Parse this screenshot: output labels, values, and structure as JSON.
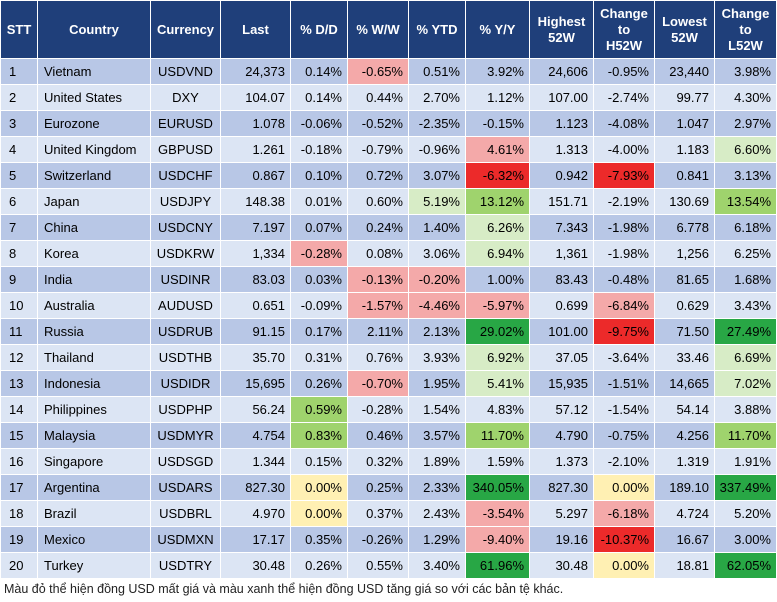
{
  "headers": [
    "STT",
    "Country",
    "Currency",
    "Last",
    "% D/D",
    "% W/W",
    "% YTD",
    "% Y/Y",
    "Highest 52W",
    "Change to H52W",
    "Lowest 52W",
    "Change to L52W"
  ],
  "header_lines": [
    [
      "STT"
    ],
    [
      "Country"
    ],
    [
      "Currency"
    ],
    [
      "Last"
    ],
    [
      "% D/D"
    ],
    [
      "% W/W"
    ],
    [
      "% YTD"
    ],
    [
      "% Y/Y"
    ],
    [
      "Highest",
      "52W"
    ],
    [
      "Change",
      "to",
      "H52W"
    ],
    [
      "Lowest",
      "52W"
    ],
    [
      "Change",
      "to",
      "L52W"
    ]
  ],
  "colors": {
    "header_bg": "#1f3f7a",
    "row_odd": "#b8c7e6",
    "row_even": "#dce5f4",
    "light_red": "#f4a9a9",
    "dark_red": "#ec2a2a",
    "light_green": "#d7ecc6",
    "green": "#9fd36d",
    "dark_green": "#28a745",
    "yellow": "#fff0b3"
  },
  "rows": [
    {
      "stt": "1",
      "country": "Vietnam",
      "currency": "USDVND",
      "last": "24,373",
      "dd": "0.14%",
      "ww": "-0.65%",
      "ytd": "0.51%",
      "yy": "3.92%",
      "h52": "24,606",
      "ch52": "-0.95%",
      "l52": "23,440",
      "cl52": "3.98%"
    },
    {
      "stt": "2",
      "country": "United States",
      "currency": "DXY",
      "last": "104.07",
      "dd": "0.14%",
      "ww": "0.44%",
      "ytd": "2.70%",
      "yy": "1.12%",
      "h52": "107.00",
      "ch52": "-2.74%",
      "l52": "99.77",
      "cl52": "4.30%"
    },
    {
      "stt": "3",
      "country": "Eurozone",
      "currency": "EURUSD",
      "last": "1.078",
      "dd": "-0.06%",
      "ww": "-0.52%",
      "ytd": "-2.35%",
      "yy": "-0.15%",
      "h52": "1.123",
      "ch52": "-4.08%",
      "l52": "1.047",
      "cl52": "2.97%"
    },
    {
      "stt": "4",
      "country": "United Kingdom",
      "currency": "GBPUSD",
      "last": "1.261",
      "dd": "-0.18%",
      "ww": "-0.79%",
      "ytd": "-0.96%",
      "yy": "4.61%",
      "h52": "1.313",
      "ch52": "-4.00%",
      "l52": "1.183",
      "cl52": "6.60%"
    },
    {
      "stt": "5",
      "country": "Switzerland",
      "currency": "USDCHF",
      "last": "0.867",
      "dd": "0.10%",
      "ww": "0.72%",
      "ytd": "3.07%",
      "yy": "-6.32%",
      "h52": "0.942",
      "ch52": "-7.93%",
      "l52": "0.841",
      "cl52": "3.13%"
    },
    {
      "stt": "6",
      "country": "Japan",
      "currency": "USDJPY",
      "last": "148.38",
      "dd": "0.01%",
      "ww": "0.60%",
      "ytd": "5.19%",
      "yy": "13.12%",
      "h52": "151.71",
      "ch52": "-2.19%",
      "l52": "130.69",
      "cl52": "13.54%"
    },
    {
      "stt": "7",
      "country": "China",
      "currency": "USDCNY",
      "last": "7.197",
      "dd": "0.07%",
      "ww": "0.24%",
      "ytd": "1.40%",
      "yy": "6.26%",
      "h52": "7.343",
      "ch52": "-1.98%",
      "l52": "6.778",
      "cl52": "6.18%"
    },
    {
      "stt": "8",
      "country": "Korea",
      "currency": "USDKRW",
      "last": "1,334",
      "dd": "-0.28%",
      "ww": "0.08%",
      "ytd": "3.06%",
      "yy": "6.94%",
      "h52": "1,361",
      "ch52": "-1.98%",
      "l52": "1,256",
      "cl52": "6.25%"
    },
    {
      "stt": "9",
      "country": "India",
      "currency": "USDINR",
      "last": "83.03",
      "dd": "0.03%",
      "ww": "-0.13%",
      "ytd": "-0.20%",
      "yy": "1.00%",
      "h52": "83.43",
      "ch52": "-0.48%",
      "l52": "81.65",
      "cl52": "1.68%"
    },
    {
      "stt": "10",
      "country": "Australia",
      "currency": "AUDUSD",
      "last": "0.651",
      "dd": "-0.09%",
      "ww": "-1.57%",
      "ytd": "-4.46%",
      "yy": "-5.97%",
      "h52": "0.699",
      "ch52": "-6.84%",
      "l52": "0.629",
      "cl52": "3.43%"
    },
    {
      "stt": "11",
      "country": "Russia",
      "currency": "USDRUB",
      "last": "91.15",
      "dd": "0.17%",
      "ww": "2.11%",
      "ytd": "2.13%",
      "yy": "29.02%",
      "h52": "101.00",
      "ch52": "-9.75%",
      "l52": "71.50",
      "cl52": "27.49%"
    },
    {
      "stt": "12",
      "country": "Thailand",
      "currency": "USDTHB",
      "last": "35.70",
      "dd": "0.31%",
      "ww": "0.76%",
      "ytd": "3.93%",
      "yy": "6.92%",
      "h52": "37.05",
      "ch52": "-3.64%",
      "l52": "33.46",
      "cl52": "6.69%"
    },
    {
      "stt": "13",
      "country": "Indonesia",
      "currency": "USDIDR",
      "last": "15,695",
      "dd": "0.26%",
      "ww": "-0.70%",
      "ytd": "1.95%",
      "yy": "5.41%",
      "h52": "15,935",
      "ch52": "-1.51%",
      "l52": "14,665",
      "cl52": "7.02%"
    },
    {
      "stt": "14",
      "country": "Philippines",
      "currency": "USDPHP",
      "last": "56.24",
      "dd": "0.59%",
      "ww": "-0.28%",
      "ytd": "1.54%",
      "yy": "4.83%",
      "h52": "57.12",
      "ch52": "-1.54%",
      "l52": "54.14",
      "cl52": "3.88%"
    },
    {
      "stt": "15",
      "country": "Malaysia",
      "currency": "USDMYR",
      "last": "4.754",
      "dd": "0.83%",
      "ww": "0.46%",
      "ytd": "3.57%",
      "yy": "11.70%",
      "h52": "4.790",
      "ch52": "-0.75%",
      "l52": "4.256",
      "cl52": "11.70%"
    },
    {
      "stt": "16",
      "country": "Singapore",
      "currency": "USDSGD",
      "last": "1.344",
      "dd": "0.15%",
      "ww": "0.32%",
      "ytd": "1.89%",
      "yy": "1.59%",
      "h52": "1.373",
      "ch52": "-2.10%",
      "l52": "1.319",
      "cl52": "1.91%"
    },
    {
      "stt": "17",
      "country": "Argentina",
      "currency": "USDARS",
      "last": "827.30",
      "dd": "0.00%",
      "ww": "0.25%",
      "ytd": "2.33%",
      "yy": "340.05%",
      "h52": "827.30",
      "ch52": "0.00%",
      "l52": "189.10",
      "cl52": "337.49%"
    },
    {
      "stt": "18",
      "country": "Brazil",
      "currency": "USDBRL",
      "last": "4.970",
      "dd": "0.00%",
      "ww": "0.37%",
      "ytd": "2.43%",
      "yy": "-3.54%",
      "h52": "5.297",
      "ch52": "-6.18%",
      "l52": "4.724",
      "cl52": "5.20%"
    },
    {
      "stt": "19",
      "country": "Mexico",
      "currency": "USDMXN",
      "last": "17.17",
      "dd": "0.35%",
      "ww": "-0.26%",
      "ytd": "1.29%",
      "yy": "-9.40%",
      "h52": "19.16",
      "ch52": "-10.37%",
      "l52": "16.67",
      "cl52": "3.00%"
    },
    {
      "stt": "20",
      "country": "Turkey",
      "currency": "USDTRY",
      "last": "30.48",
      "dd": "0.26%",
      "ww": "0.55%",
      "ytd": "3.40%",
      "yy": "61.96%",
      "h52": "30.48",
      "ch52": "0.00%",
      "l52": "18.81",
      "cl52": "62.05%"
    }
  ],
  "highlights": {
    "0": {
      "ww": "light_red"
    },
    "3": {
      "yy": "light_red",
      "cl52": "light_green"
    },
    "4": {
      "yy": "dark_red",
      "ch52": "dark_red"
    },
    "5": {
      "ytd": "light_green",
      "yy": "green",
      "cl52": "green"
    },
    "6": {
      "yy": "light_green"
    },
    "7": {
      "dd": "light_red",
      "yy": "light_green"
    },
    "8": {
      "ww": "light_red",
      "ytd": "light_red"
    },
    "9": {
      "ww": "light_red",
      "ytd": "light_red",
      "yy": "light_red",
      "ch52": "light_red"
    },
    "10": {
      "yy": "dark_green",
      "ch52": "dark_red",
      "cl52": "dark_green"
    },
    "11": {
      "yy": "light_green",
      "cl52": "light_green"
    },
    "12": {
      "ww": "light_red",
      "yy": "light_green",
      "cl52": "light_green"
    },
    "13": {
      "dd": "green"
    },
    "14": {
      "dd": "green",
      "yy": "green",
      "cl52": "green"
    },
    "16": {
      "dd": "yellow",
      "yy": "dark_green",
      "ch52": "yellow",
      "cl52": "dark_green"
    },
    "17": {
      "dd": "yellow",
      "yy": "light_red",
      "ch52": "light_red"
    },
    "18": {
      "yy": "light_red",
      "ch52": "dark_red"
    },
    "19": {
      "yy": "dark_green",
      "ch52": "yellow",
      "cl52": "dark_green"
    }
  },
  "footnote": "Màu đỏ thể hiện đồng USD mất giá và màu xanh thể hiện đồng USD tăng giá so với các bản tệ khác."
}
